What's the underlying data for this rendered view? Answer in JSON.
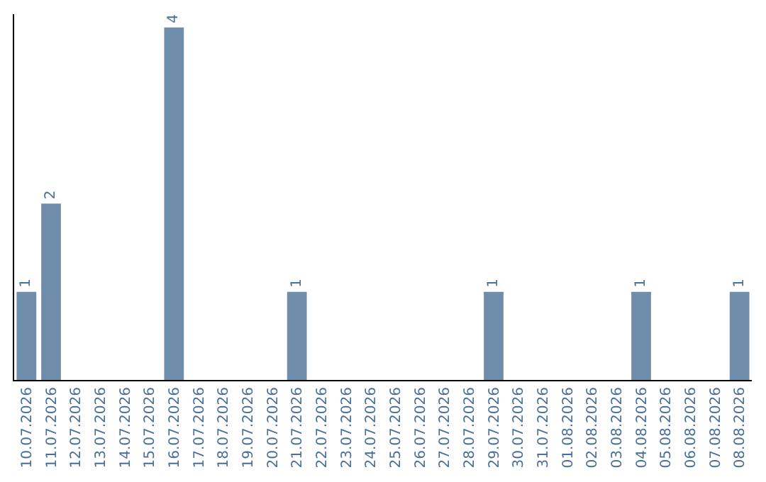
{
  "chart_data": {
    "type": "bar",
    "categories": [
      "10.07.2026",
      "11.07.2026",
      "12.07.2026",
      "13.07.2026",
      "14.07.2026",
      "15.07.2026",
      "16.07.2026",
      "17.07.2026",
      "18.07.2026",
      "19.07.2026",
      "20.07.2026",
      "21.07.2026",
      "22.07.2026",
      "23.07.2026",
      "24.07.2026",
      "25.07.2026",
      "26.07.2026",
      "27.07.2026",
      "28.07.2026",
      "29.07.2026",
      "30.07.2026",
      "31.07.2026",
      "01.08.2026",
      "02.08.2026",
      "03.08.2026",
      "04.08.2026",
      "05.08.2026",
      "06.08.2026",
      "07.08.2026",
      "08.08.2026"
    ],
    "values": [
      1,
      2,
      0,
      0,
      0,
      0,
      4,
      0,
      0,
      0,
      0,
      1,
      0,
      0,
      0,
      0,
      0,
      0,
      0,
      1,
      0,
      0,
      0,
      0,
      0,
      1,
      0,
      0,
      0,
      1
    ],
    "value_labels": [
      "1",
      "2",
      null,
      null,
      null,
      null,
      "4",
      null,
      null,
      null,
      null,
      "1",
      null,
      null,
      null,
      null,
      null,
      null,
      null,
      "1",
      null,
      null,
      null,
      null,
      null,
      "1",
      null,
      null,
      null,
      "1"
    ],
    "color": "#6d8dab",
    "ylim": [
      0,
      4.15
    ],
    "tick_labels": "x"
  }
}
